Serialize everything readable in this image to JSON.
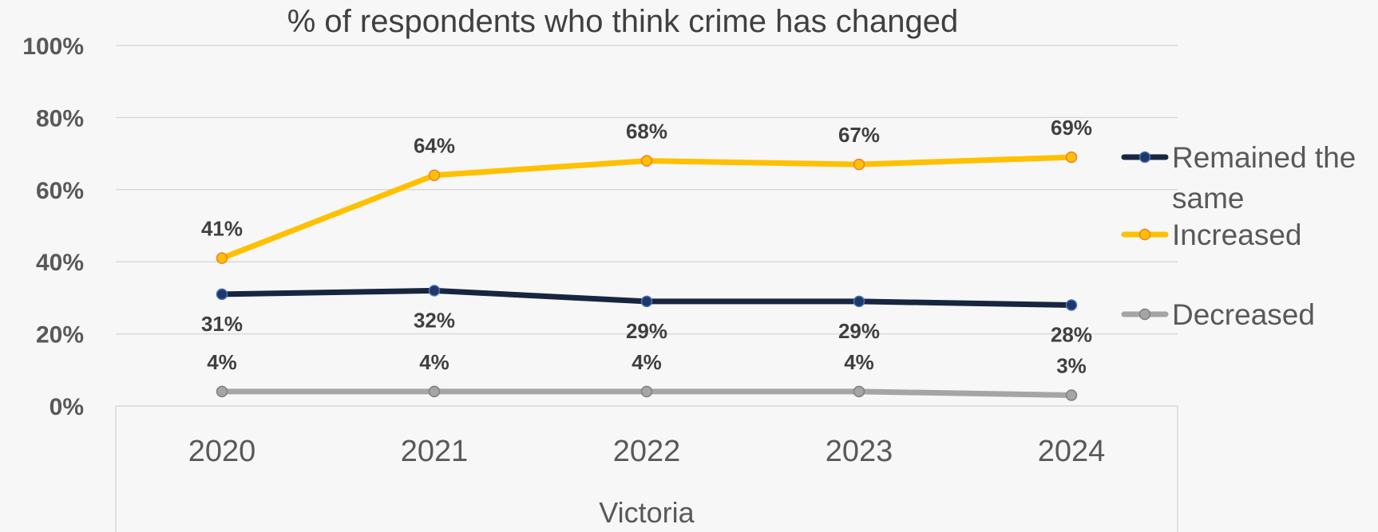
{
  "chart_data": {
    "type": "line",
    "title": "% of respondents who think crime has changed",
    "xlabel": "Victoria",
    "ylabel": "",
    "categories": [
      "2020",
      "2021",
      "2022",
      "2023",
      "2024"
    ],
    "ylim": [
      0,
      100
    ],
    "y_ticks": [
      "0%",
      "20%",
      "40%",
      "60%",
      "80%",
      "100%"
    ],
    "grid": true,
    "legend_position": "right",
    "series": [
      {
        "name": "Remained the same",
        "values": [
          31,
          32,
          29,
          29,
          28
        ],
        "labels": [
          "31%",
          "32%",
          "29%",
          "29%",
          "28%"
        ],
        "color": "#172640",
        "marker_color": "#203864"
      },
      {
        "name": "Increased",
        "values": [
          41,
          64,
          68,
          67,
          69
        ],
        "labels": [
          "41%",
          "64%",
          "68%",
          "67%",
          "69%"
        ],
        "color": "#FFC000",
        "marker_color": "#FFC000"
      },
      {
        "name": "Decreased",
        "values": [
          4,
          4,
          4,
          4,
          3
        ],
        "labels": [
          "4%",
          "4%",
          "4%",
          "4%",
          "3%"
        ],
        "color": "#A5A5A5",
        "marker_color": "#A5A5A5"
      }
    ]
  }
}
